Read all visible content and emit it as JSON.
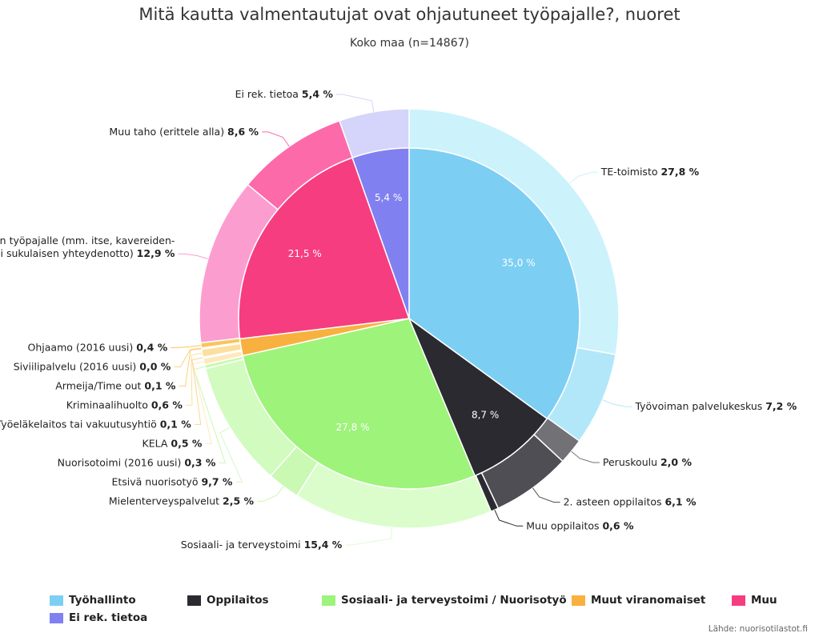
{
  "title": "Mitä kautta valmentautujat ovat ohjautuneet työpajalle?, nuoret",
  "subtitle": "Koko maa (n=14867)",
  "source": "Lähde: nuorisotilastot.fi",
  "chart_data": {
    "type": "pie",
    "title": "Mitä kautta valmentautujat ovat ohjautuneet työpajalle?, nuoret",
    "subtitle": "Koko maa (n=14867)",
    "inner": [
      {
        "name": "Työhallinto",
        "value": 35.0,
        "label": "35,0 %",
        "color": "#7ccff3"
      },
      {
        "name": "Oppilaitos",
        "value": 8.7,
        "label": "8,7 %",
        "color": "#2b2a30"
      },
      {
        "name": "Sosiaali- ja terveystoimi / Nuorisotyö",
        "value": 27.8,
        "label": "27,8 %",
        "color": "#9ef37a"
      },
      {
        "name": "Muut viranomaiset",
        "value": 1.6,
        "label": "",
        "color": "#f8b13e"
      },
      {
        "name": "Muu",
        "value": 21.5,
        "label": "21,5 %",
        "color": "#f63d80"
      },
      {
        "name": "Ei rek. tietoa",
        "value": 5.4,
        "label": "5,4 %",
        "color": "#8180f0"
      }
    ],
    "outer": [
      {
        "name": "TE-toimisto",
        "value": 27.8,
        "value_label": "27,8 %",
        "color": "#ccf2fc"
      },
      {
        "name": "Työvoiman palvelukeskus",
        "value": 7.2,
        "value_label": "7,2 %",
        "color": "#b2e7fa"
      },
      {
        "name": "Peruskoulu",
        "value": 2.0,
        "value_label": "2,0 %",
        "color": "#727176"
      },
      {
        "name": "2. asteen oppilaitos",
        "value": 6.1,
        "value_label": "6,1 %",
        "color": "#4f4e55"
      },
      {
        "name": "Muu oppilaitos",
        "value": 0.6,
        "value_label": "0,6 %",
        "color": "#2b2a30"
      },
      {
        "name": "Sosiaali- ja terveystoimi",
        "value": 15.4,
        "value_label": "15,4 %",
        "color": "#dbfdcc"
      },
      {
        "name": "Mielenterveyspalvelut",
        "value": 2.5,
        "value_label": "2,5 %",
        "color": "#c9f9b3"
      },
      {
        "name": "Etsivä nuorisotyö",
        "value": 9.7,
        "value_label": "9,7 %",
        "color": "#d2fbbf"
      },
      {
        "name": "Nuorisotoimi (2016 uusi)",
        "value": 0.3,
        "value_label": "0,3 %",
        "color": "#c9f9b0"
      },
      {
        "name": "KELA",
        "value": 0.5,
        "value_label": "0,5 %",
        "color": "#fde9bd"
      },
      {
        "name": "Työeläkelaitos tai vakuutusyhtiö",
        "value": 0.1,
        "value_label": "0,1 %",
        "color": "#fbd68a"
      },
      {
        "name": "Kriminaalihuolto",
        "value": 0.6,
        "value_label": "0,6 %",
        "color": "#fcdf9e"
      },
      {
        "name": "Armeija/Time out",
        "value": 0.1,
        "value_label": "0,1 %",
        "color": "#fbd07c"
      },
      {
        "name": "Siviilipalvelu (2016 uusi)",
        "value": 0.0,
        "value_label": "0,0 %",
        "color": "#fbd07c"
      },
      {
        "name": "Ohjaamo (2016 uusi)",
        "value": 0.4,
        "value_label": "0,4 %",
        "color": "#f9c55e"
      },
      {
        "name": "Suoraan työpajalle (mm. itse, kavereiden tai sukulaisen yhteydenotto)",
        "lines": [
          "Suoraan työpajalle (mm. itse, kavereiden-",
          "tai sukulaisen yhteydenotto)"
        ],
        "value": 12.9,
        "value_label": "12,9 %",
        "color": "#fc9dd0"
      },
      {
        "name": "Muu taho (erittele alla)",
        "value": 8.6,
        "value_label": "8,6 %",
        "color": "#fc6aa9"
      },
      {
        "name": "Ei rek. tietoa",
        "value": 5.4,
        "value_label": "5,4 %",
        "color": "#d5d4fa"
      }
    ],
    "legend": [
      {
        "name": "Työhallinto",
        "color": "#7ccff3"
      },
      {
        "name": "Oppilaitos",
        "color": "#2b2a30"
      },
      {
        "name": "Sosiaali- ja terveystoimi / Nuorisotyö",
        "color": "#9ef37a"
      },
      {
        "name": "Muut viranomaiset",
        "color": "#f8b13e"
      },
      {
        "name": "Muu",
        "color": "#f63d80"
      },
      {
        "name": "Ei rek. tietoa",
        "color": "#8180f0"
      }
    ],
    "legend_position": "bottom"
  }
}
